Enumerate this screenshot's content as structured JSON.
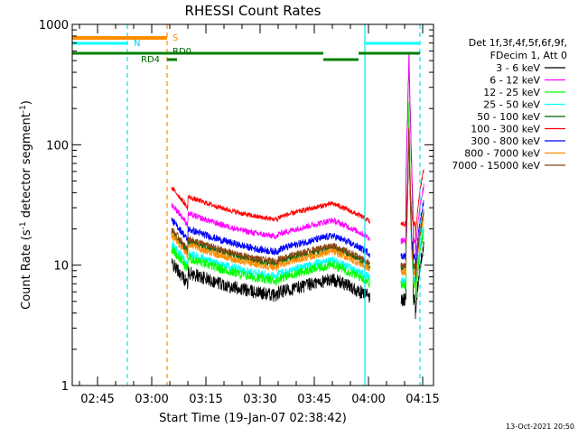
{
  "chart_data": {
    "type": "line",
    "title": "RHESSI Count Rates",
    "xlabel": "Start Time (19-Jan-07 02:38:42)",
    "ylabel_parts": [
      "Count Rate (s",
      "-1",
      " detector segment",
      "-1",
      ")"
    ],
    "y_scale": "log",
    "ylim": [
      1,
      1000
    ],
    "y_ticks": [
      {
        "value": 1,
        "label": "1"
      },
      {
        "value": 10,
        "label": "10"
      },
      {
        "value": 100,
        "label": "100"
      },
      {
        "value": 1000,
        "label": "1000"
      }
    ],
    "xlim": [
      "02:38",
      "04:18"
    ],
    "x_ticks": [
      "02:45",
      "03:00",
      "03:15",
      "03:30",
      "03:45",
      "04:00",
      "04:15"
    ],
    "grid": false,
    "legend_position": "right",
    "legend_header": [
      "Det 1f,3f,4f,5f,6f,9f,",
      "FDecim 1, Att 0"
    ],
    "series": [
      {
        "name": "3 - 6 keV",
        "color": "#000000"
      },
      {
        "name": "6 - 12 keV",
        "color": "#ff00ff"
      },
      {
        "name": "12 - 25 keV",
        "color": "#00ff00"
      },
      {
        "name": "25 - 50 keV",
        "color": "#00ffff"
      },
      {
        "name": "50 - 100 keV",
        "color": "#006400"
      },
      {
        "name": "100 - 300 keV",
        "color": "#ff0000"
      },
      {
        "name": "300 - 800 keV",
        "color": "#0000ff"
      },
      {
        "name": "800 - 7000 keV",
        "color": "#ff8c00"
      },
      {
        "name": "7000 - 15000 keV",
        "color": "#8b4513"
      }
    ],
    "annotations": {
      "S": "S",
      "N": "N",
      "RD0": "RD0",
      "RD4": "RD4"
    },
    "timestamp": "13-Oct-2021 20:50"
  }
}
